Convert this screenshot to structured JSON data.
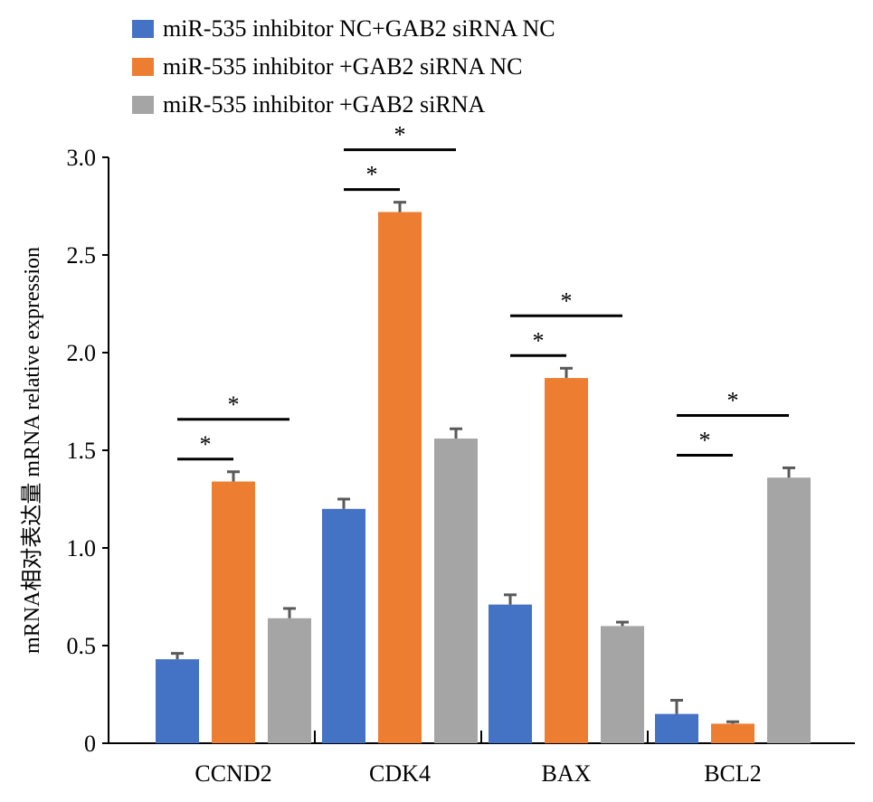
{
  "chart_data": {
    "type": "bar",
    "title": "",
    "xlabel": "",
    "ylabel": "mRNA相对表达量 mRNA relative expression",
    "ylim": [
      0,
      3.0
    ],
    "yticks": [
      0,
      0.5,
      1.0,
      1.5,
      2.0,
      2.5,
      3.0
    ],
    "ytick_labels": [
      "0",
      "0.5",
      "1.0",
      "1.5",
      "2.0",
      "2.5",
      "3.0"
    ],
    "categories": [
      "CCND2",
      "CDK4",
      "BAX",
      "BCL2"
    ],
    "legend_position": "top-left",
    "grid": false,
    "series": [
      {
        "name": "miR-535 inhibitor NC+GAB2 siRNA NC",
        "color": "#4472C4",
        "values": [
          0.43,
          1.2,
          0.71,
          0.15
        ],
        "errors": [
          0.03,
          0.05,
          0.05,
          0.07
        ]
      },
      {
        "name": "miR-535 inhibitor +GAB2 siRNA NC",
        "color": "#ED7D31",
        "values": [
          1.34,
          2.72,
          1.87,
          0.1
        ],
        "errors": [
          0.05,
          0.05,
          0.05,
          0.01
        ]
      },
      {
        "name": "miR-535 inhibitor +GAB2 siRNA",
        "color": "#A5A5A5",
        "values": [
          0.64,
          1.56,
          0.6,
          1.36
        ],
        "errors": [
          0.05,
          0.05,
          0.02,
          0.05
        ]
      }
    ],
    "significance": [
      {
        "category": "CCND2",
        "from_series": 0,
        "to_series": 1,
        "label": "*"
      },
      {
        "category": "CCND2",
        "from_series": 0,
        "to_series": 2,
        "label": "*"
      },
      {
        "category": "CDK4",
        "from_series": 0,
        "to_series": 1,
        "label": "*"
      },
      {
        "category": "CDK4",
        "from_series": 0,
        "to_series": 2,
        "label": "*"
      },
      {
        "category": "BAX",
        "from_series": 0,
        "to_series": 1,
        "label": "*"
      },
      {
        "category": "BAX",
        "from_series": 0,
        "to_series": 2,
        "label": "*"
      },
      {
        "category": "BCL2",
        "from_series": 0,
        "to_series": 1,
        "label": "*"
      },
      {
        "category": "BCL2",
        "from_series": 0,
        "to_series": 2,
        "label": "*"
      }
    ]
  }
}
